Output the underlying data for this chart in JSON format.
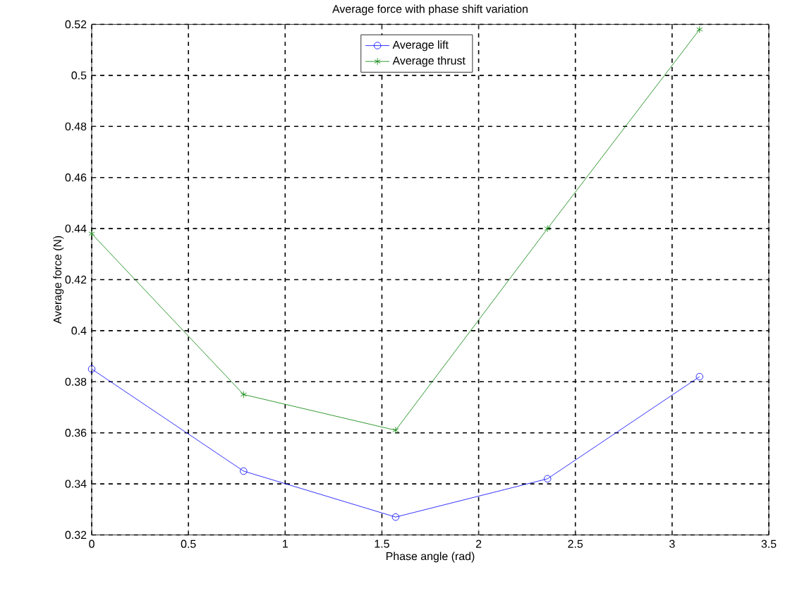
{
  "chart_data": {
    "type": "line",
    "title": "Average force with phase shift variation",
    "xlabel": "Phase angle (rad)",
    "ylabel": "Average force (N)",
    "x": [
      0,
      0.785,
      1.571,
      2.356,
      3.142
    ],
    "series": [
      {
        "name": "Average lift",
        "color": "#0000ff",
        "marker": "circle",
        "values": [
          0.385,
          0.345,
          0.327,
          0.342,
          0.382
        ]
      },
      {
        "name": "Average thrust",
        "color": "#008000",
        "marker": "cross",
        "values": [
          0.438,
          0.375,
          0.361,
          0.44,
          0.518
        ]
      }
    ],
    "xlim": [
      0,
      3.5
    ],
    "xticks": [
      0,
      0.5,
      1,
      1.5,
      2,
      2.5,
      3,
      3.5
    ],
    "ylim": [
      0.32,
      0.52
    ],
    "yticks": [
      0.32,
      0.34,
      0.36,
      0.38,
      0.4,
      0.42,
      0.44,
      0.46,
      0.48,
      0.5,
      0.52
    ],
    "grid": true,
    "legend": "top",
    "line_style": "solid"
  }
}
